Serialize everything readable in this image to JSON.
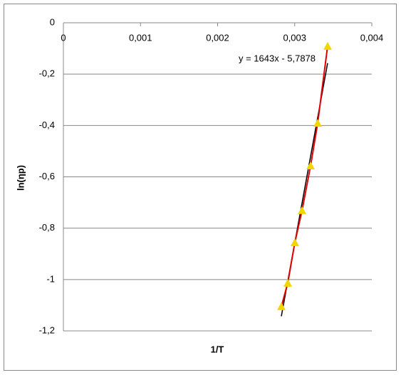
{
  "chart_data": {
    "type": "scatter",
    "x_label": "1/T",
    "y_label": "ln(ηp)",
    "series": [
      {
        "color": "#e00000",
        "marker_color": "#f2d600",
        "x": [
          0.002827,
          0.00291,
          0.003002,
          0.003095,
          0.003206,
          0.003298,
          0.003427
        ],
        "values": [
          -1.105,
          -1.014,
          -0.856,
          -0.731,
          -0.557,
          -0.391,
          -0.091
        ]
      }
    ],
    "trendline": {
      "label": "y = 1643x - 5,7878",
      "slope": 1643,
      "intercept": -5.7878,
      "color": "#000000"
    },
    "xlim": [
      0,
      0.004
    ],
    "xticks": [
      0,
      {
        "value": 0.001,
        "label": "0,001"
      },
      {
        "value": 0.002,
        "label": "0,002"
      },
      {
        "value": 0.003,
        "label": "0,003"
      },
      {
        "value": 0.004,
        "label": "0,004"
      }
    ],
    "ylim": [
      -1.2,
      0
    ],
    "yticks": [
      0,
      {
        "value": -0.2,
        "label": "-0,2"
      },
      {
        "value": -0.4,
        "label": "-0,4"
      },
      {
        "value": -0.6,
        "label": "-0,6"
      },
      {
        "value": -0.8,
        "label": "-0,8"
      },
      -1,
      {
        "value": -1.2,
        "label": "-1,2"
      }
    ],
    "grid": true
  }
}
